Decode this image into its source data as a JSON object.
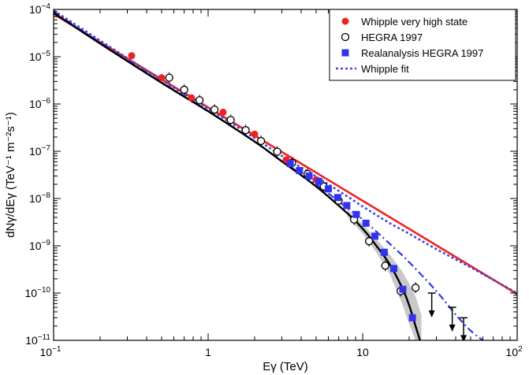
{
  "chart_data": {
    "type": "scatter",
    "title": "",
    "xlabel": "Eγ (TeV)",
    "ylabel": "dNγ/dEγ (TeV⁻¹ m⁻²s⁻¹)",
    "xscale": "log",
    "yscale": "log",
    "xlim": [
      0.1,
      100
    ],
    "ylim": [
      1e-11,
      0.0001
    ],
    "x_ticks": [
      {
        "value": 0.1,
        "label": "10",
        "exp": "−1"
      },
      {
        "value": 1,
        "label": "1",
        "exp": ""
      },
      {
        "value": 10,
        "label": "10",
        "exp": ""
      },
      {
        "value": 100,
        "label": "10",
        "exp": "2"
      }
    ],
    "y_ticks": [
      {
        "value": 0.0001,
        "label": "10",
        "exp": "−4"
      },
      {
        "value": 1e-05,
        "label": "10",
        "exp": "−5"
      },
      {
        "value": 1e-06,
        "label": "10",
        "exp": "−6"
      },
      {
        "value": 1e-07,
        "label": "10",
        "exp": "−7"
      },
      {
        "value": 1e-08,
        "label": "10",
        "exp": "−8"
      },
      {
        "value": 1e-09,
        "label": "10",
        "exp": "−9"
      },
      {
        "value": 1e-10,
        "label": "10",
        "exp": "−10"
      },
      {
        "value": 1e-11,
        "label": "10",
        "exp": "−11"
      }
    ],
    "legend": {
      "position": "top-right",
      "entries": [
        {
          "label": "Whipple very high state",
          "marker": "filled-circle",
          "color": "#ee2222"
        },
        {
          "label": "HEGRA 1997",
          "marker": "open-circle",
          "color": "#000000"
        },
        {
          "label": "Realanalysis HEGRA 1997",
          "marker": "filled-square",
          "color": "#3333ee"
        },
        {
          "label": "Whipple fit",
          "marker": "dotted-line",
          "color": "#4444dd"
        }
      ]
    },
    "series": [
      {
        "name": "Whipple very high state",
        "kind": "points",
        "marker": "filled-circle",
        "color": "#ee2222",
        "x": [
          0.32,
          0.5,
          0.78,
          1.25,
          2.0,
          3.2,
          5.0
        ],
        "y": [
          1.05e-05,
          3.6e-06,
          1.35e-06,
          6.7e-07,
          2.3e-07,
          6.6e-08,
          2.5e-08
        ]
      },
      {
        "name": "HEGRA 1997",
        "kind": "points",
        "marker": "open-circle",
        "color": "#000000",
        "x": [
          0.56,
          0.7,
          0.88,
          1.1,
          1.4,
          1.75,
          2.2,
          2.8,
          3.5,
          4.4,
          5.6,
          7.0,
          8.8,
          11.0,
          14.0,
          17.6,
          22.0
        ],
        "y": [
          3.6e-06,
          2e-06,
          1.2e-06,
          7.6e-07,
          4.6e-07,
          2.8e-07,
          1.65e-07,
          9.8e-08,
          5.7e-08,
          3.3e-08,
          1.8e-08,
          9e-09,
          3.6e-09,
          1.25e-09,
          3.8e-10,
          1.1e-10,
          1.3e-10
        ]
      },
      {
        "name": "Realanalysis HEGRA 1997",
        "kind": "points",
        "marker": "filled-square",
        "color": "#3333ee",
        "x": [
          3.4,
          3.9,
          4.5,
          5.2,
          6.0,
          6.9,
          7.9,
          9.1,
          10.5,
          12.0,
          13.8,
          15.9,
          18.2,
          21.0
        ],
        "y": [
          5.5e-08,
          3.9e-08,
          3e-08,
          2.3e-08,
          1.6e-08,
          1.05e-08,
          7.1e-09,
          4.6e-09,
          3e-09,
          1.6e-09,
          7.3e-10,
          3.3e-10,
          1.2e-10,
          3e-11
        ]
      },
      {
        "name": "Upper limits",
        "kind": "upper-limits",
        "color": "#000000",
        "x": [
          28,
          38,
          45
        ],
        "y": [
          1e-10,
          5e-11,
          3e-11
        ]
      },
      {
        "name": "Power-law fit (very high state)",
        "kind": "line",
        "style": "solid",
        "color": "#ee2222",
        "x": [
          0.1,
          100
        ],
        "y": [
          8e-05,
          9.5e-11
        ]
      },
      {
        "name": "Whipple fit",
        "kind": "line",
        "style": "dotted",
        "color": "#4444dd",
        "x": [
          0.1,
          0.2,
          0.5,
          1,
          2,
          3,
          5,
          8,
          10,
          15,
          20,
          30,
          50,
          70,
          100
        ],
        "y": [
          9.5e-05,
          2.2e-05,
          3.2e-06,
          8e-07,
          1.9e-07,
          8e-08,
          2.9e-08,
          1.1e-08,
          6.8e-09,
          3e-09,
          1.8e-09,
          8.5e-10,
          3.5e-10,
          1.9e-10,
          1e-10
        ]
      },
      {
        "name": "Exponential cutoff fit (dash-dot)",
        "kind": "line",
        "style": "dashdot",
        "color": "#3333ee",
        "x": [
          0.1,
          0.2,
          0.5,
          1,
          2,
          3,
          5,
          8,
          10,
          15,
          20,
          30,
          40,
          50,
          60
        ],
        "y": [
          9e-05,
          2e-05,
          2.9e-06,
          7.1e-07,
          1.6e-07,
          6.2e-08,
          2e-08,
          6.2e-09,
          3.6e-09,
          1.1e-09,
          4.5e-10,
          1.1e-10,
          3.5e-11,
          1.6e-11,
          1e-11
        ]
      },
      {
        "name": "Cutoff fit (black)",
        "kind": "line",
        "style": "solid",
        "color": "#000000",
        "x": [
          0.1,
          0.2,
          0.5,
          1,
          2,
          3,
          5,
          8,
          10,
          12,
          15,
          18,
          20,
          22,
          23.5
        ],
        "y": [
          8.5e-05,
          1.9e-05,
          2.8e-06,
          7e-07,
          1.6e-07,
          6.1e-08,
          1.8e-08,
          4.8e-09,
          2.3e-09,
          1.1e-09,
          4e-10,
          1.3e-10,
          5.5e-11,
          2e-11,
          1e-11
        ]
      },
      {
        "name": "Fit uncertainty band",
        "kind": "band",
        "color": "#c8c8c8",
        "x": [
          8,
          10,
          12,
          15,
          18,
          20,
          22,
          24
        ],
        "y_low": [
          4e-09,
          1.8e-09,
          8e-10,
          2.5e-10,
          6e-11,
          2.2e-11,
          1e-11,
          1e-11
        ],
        "y_high": [
          5.8e-09,
          2.9e-09,
          1.5e-09,
          6.5e-10,
          2.9e-10,
          1.6e-10,
          8.5e-11,
          3.5e-11
        ]
      }
    ]
  }
}
